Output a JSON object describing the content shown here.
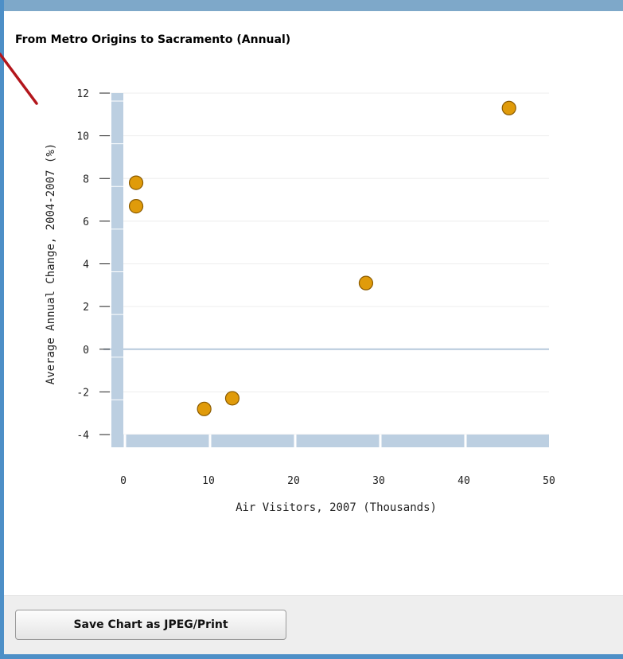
{
  "chart_data": {
    "type": "scatter",
    "title": "From Metro Origins to Sacramento (Annual)",
    "xlabel": "Air Visitors, 2007 (Thousands)",
    "ylabel": "Average Annual Change, 2004-2007 (%)",
    "xlim": [
      0,
      50
    ],
    "ylim": [
      -4,
      12
    ],
    "xticks": [
      0,
      10,
      20,
      30,
      40,
      50
    ],
    "yticks": [
      12,
      10,
      8,
      6,
      4,
      2,
      0,
      -2,
      -4
    ],
    "grid": true,
    "marker_color": "#e09b0a",
    "points": [
      {
        "x": 1.5,
        "y": 7.8
      },
      {
        "x": 1.5,
        "y": 6.7
      },
      {
        "x": 9.5,
        "y": -2.8
      },
      {
        "x": 12.8,
        "y": -2.3
      },
      {
        "x": 28.5,
        "y": 3.1
      },
      {
        "x": 45.3,
        "y": 11.3
      }
    ]
  },
  "footer": {
    "save_label": "Save Chart as JPEG/Print"
  }
}
